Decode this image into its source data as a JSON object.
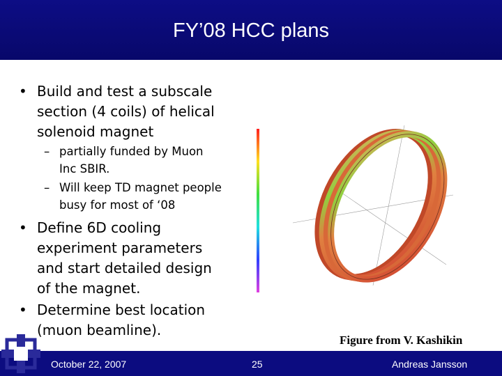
{
  "title": "FY’08 HCC plans",
  "bullets": [
    {
      "lines": [
        "Build and test a subscale",
        "section (4 coils) of helical",
        "solenoid magnet"
      ],
      "sub": [
        {
          "lines": [
            "partially funded by Muon",
            "Inc SBIR."
          ]
        },
        {
          "lines": [
            "Will keep TD magnet people",
            "busy for most of ‘08"
          ]
        }
      ]
    },
    {
      "lines": [
        "Define 6D cooling",
        "experiment parameters",
        "and start detailed design",
        "of the magnet."
      ]
    },
    {
      "lines": [
        "Determine best location",
        "(muon beamline)."
      ]
    }
  ],
  "figure_caption": "Figure from V. Kashikin",
  "footer": {
    "date": "October 22, 2007",
    "page": "25",
    "author": "Andreas Jansson"
  }
}
